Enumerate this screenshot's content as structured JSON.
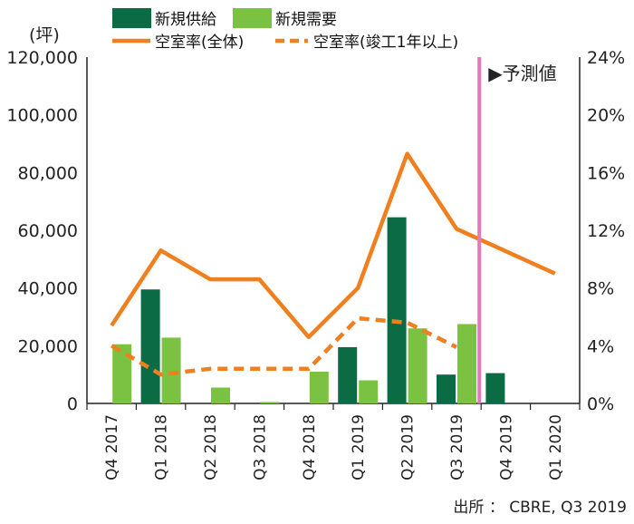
{
  "chart_data": {
    "type": "bar",
    "categories": [
      "Q4 2017",
      "Q1 2018",
      "Q2 2018",
      "Q3 2018",
      "Q4 2018",
      "Q1 2019",
      "Q2 2019",
      "Q3 2019",
      "Q4 2019",
      "Q1 2020"
    ],
    "bar_series": [
      {
        "name": "新規供給",
        "color": "#0a6b45",
        "values": [
          0,
          39500,
          0,
          0,
          0,
          19500,
          64500,
          10000,
          10500,
          0
        ]
      },
      {
        "name": "新規需要",
        "color": "#7cc242",
        "values": [
          20500,
          22800,
          5500,
          500,
          11000,
          8000,
          26000,
          27500,
          0,
          0
        ]
      }
    ],
    "line_series": [
      {
        "name": "空室率(全体)",
        "color": "#f07f1f",
        "style": "solid",
        "values": [
          5.4,
          10.6,
          8.6,
          8.6,
          4.6,
          8.0,
          17.3,
          12.1,
          null,
          9.0
        ]
      },
      {
        "name": "空室率(竣工1年以上)",
        "color": "#f07f1f",
        "style": "dashed",
        "values": [
          4.0,
          2.0,
          2.4,
          2.4,
          2.4,
          5.9,
          5.6,
          3.9,
          null,
          null
        ]
      }
    ],
    "y_left": {
      "unit": "(坪)",
      "min": 0,
      "max": 120000,
      "ticks": [
        "0",
        "20,000",
        "40,000",
        "60,000",
        "80,000",
        "100,000",
        "120,000"
      ]
    },
    "y_right": {
      "min": 0,
      "max": 24,
      "ticks": [
        "0%",
        "4%",
        "8%",
        "12%",
        "16%",
        "20%",
        "24%"
      ]
    },
    "forecast_marker": {
      "label": "▶予測値",
      "after_category_index": 7,
      "color": "#e07ab8"
    },
    "legend_placement": "top",
    "grid": false,
    "source": "出所 ： CBRE, Q3 2019"
  }
}
